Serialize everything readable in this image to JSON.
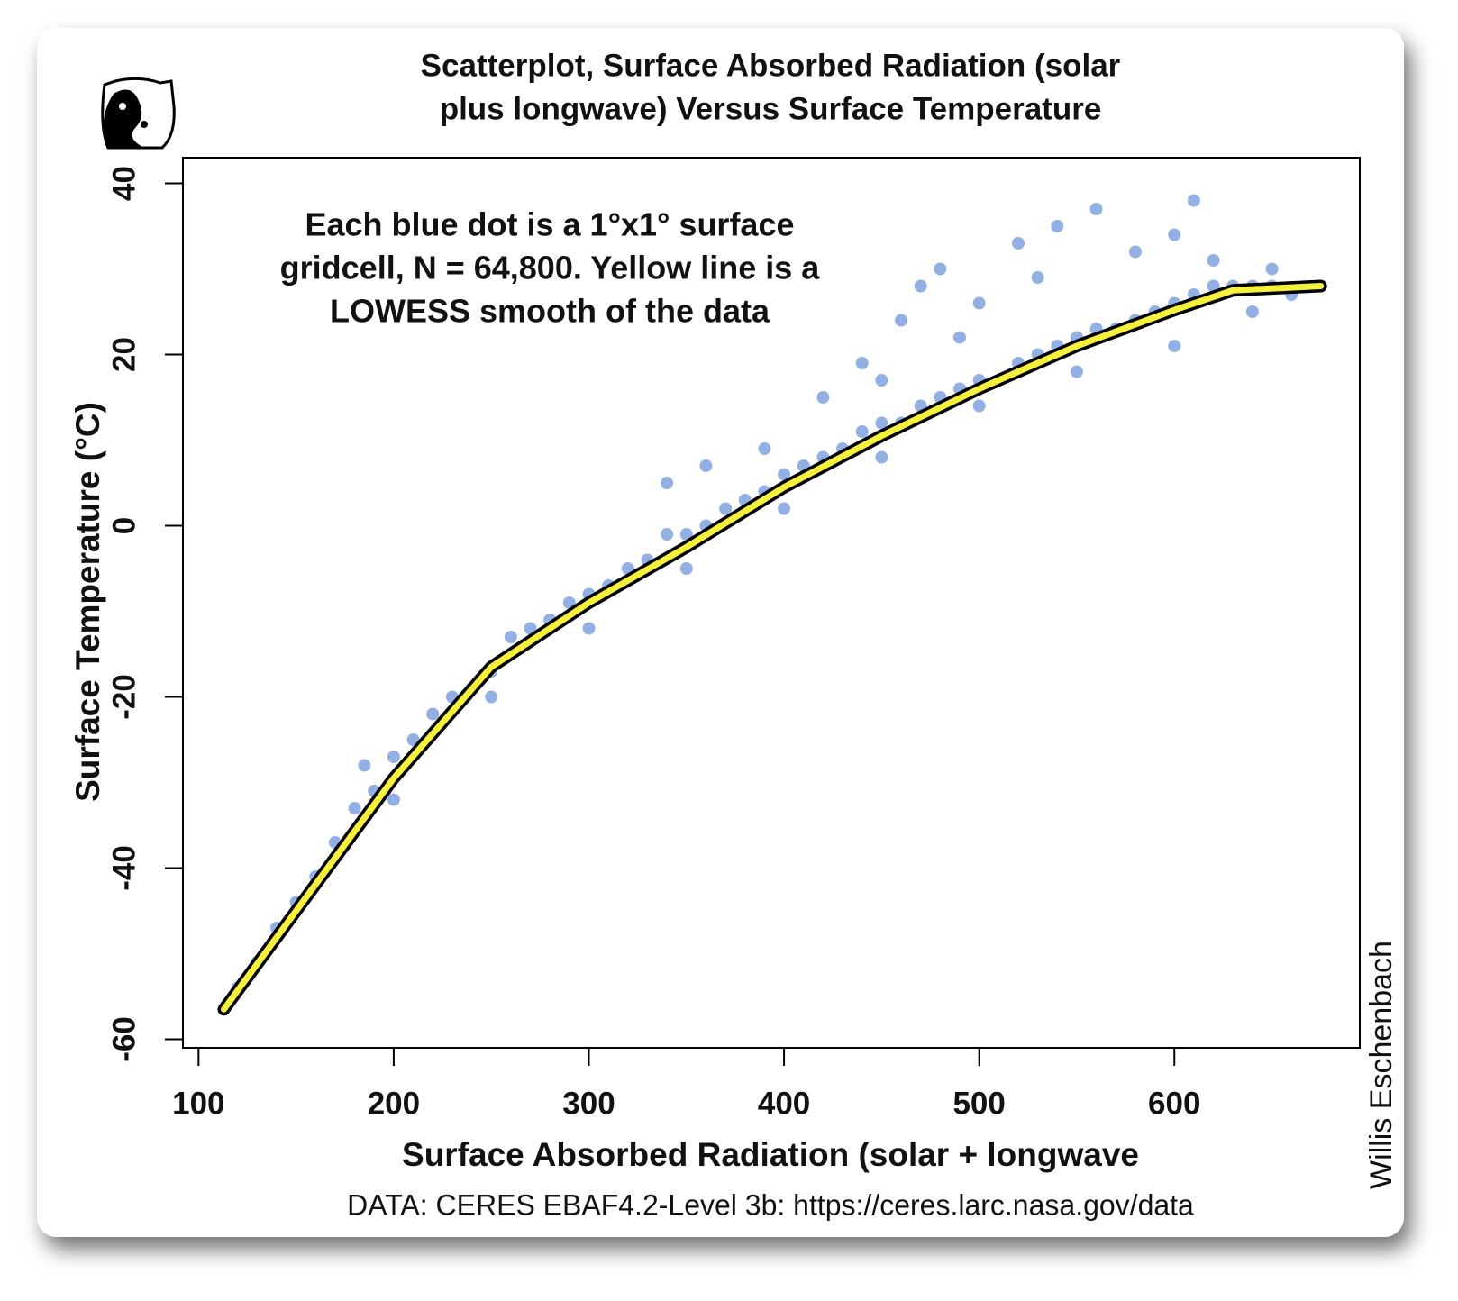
{
  "chart_data": {
    "type": "scatter",
    "title": [
      "Scatterplot, Surface Absorbed Radiation (solar",
      "plus longwave) Versus Surface Temperature"
    ],
    "annotation": [
      "Each blue dot is a 1°x1° surface",
      "gridcell, N = 64,800. Yellow line is a",
      "LOWESS smooth of the data"
    ],
    "xlabel": "Surface Absorbed Radiation (solar + longwave",
    "ylabel": "Surface Temperature (°C)",
    "source": "DATA: CERES EBAF4.2-Level 3b: https://ceres.larc.nasa.gov/data",
    "credit": "Willis Eschenbach",
    "xlim": [
      92,
      695
    ],
    "ylim": [
      -61,
      43
    ],
    "xticks": [
      100,
      200,
      300,
      400,
      500,
      600
    ],
    "yticks": [
      -60,
      -40,
      -20,
      0,
      20,
      40
    ],
    "series": [
      {
        "type": "scatter",
        "color": "#3a6fd0",
        "x": [
          120,
          130,
          140,
          150,
          160,
          170,
          180,
          185,
          190,
          200,
          210,
          220,
          230,
          240,
          250,
          260,
          270,
          280,
          290,
          300,
          310,
          320,
          330,
          340,
          350,
          360,
          370,
          380,
          390,
          400,
          410,
          420,
          430,
          440,
          450,
          460,
          470,
          480,
          490,
          500,
          510,
          520,
          530,
          540,
          550,
          560,
          570,
          580,
          590,
          600,
          610,
          620,
          630,
          640,
          650,
          660,
          300,
          350,
          400,
          450,
          500,
          550,
          600,
          640,
          250,
          200,
          340,
          360,
          390,
          420,
          440,
          460,
          470,
          480,
          500,
          520,
          540,
          560,
          580,
          600,
          620,
          650,
          610,
          530,
          450,
          490
        ],
        "values": [
          -54,
          -51,
          -47,
          -44,
          -41,
          -37,
          -33,
          -28,
          -31,
          -27,
          -25,
          -22,
          -20,
          -19,
          -17,
          -13,
          -12,
          -11,
          -9,
          -8,
          -7,
          -5,
          -4,
          -1,
          -1,
          0,
          2,
          3,
          4,
          6,
          7,
          8,
          9,
          11,
          12,
          12,
          14,
          15,
          16,
          17,
          17,
          19,
          20,
          21,
          22,
          23,
          23,
          24,
          25,
          26,
          27,
          28,
          28,
          28,
          28,
          27,
          -12,
          -5,
          2,
          8,
          14,
          18,
          21,
          25,
          -20,
          -32,
          5,
          7,
          9,
          15,
          19,
          24,
          28,
          30,
          26,
          33,
          35,
          37,
          32,
          34,
          31,
          30,
          38,
          29,
          17,
          22
        ]
      },
      {
        "type": "line",
        "color": "#f5f03c",
        "x": [
          113,
          150,
          200,
          250,
          300,
          350,
          400,
          450,
          500,
          550,
          600,
          630,
          675
        ],
        "values": [
          -56.5,
          -45,
          -29.5,
          -16.5,
          -9,
          -2.5,
          4.5,
          10.5,
          16,
          21,
          25.2,
          27.5,
          28
        ]
      }
    ]
  }
}
